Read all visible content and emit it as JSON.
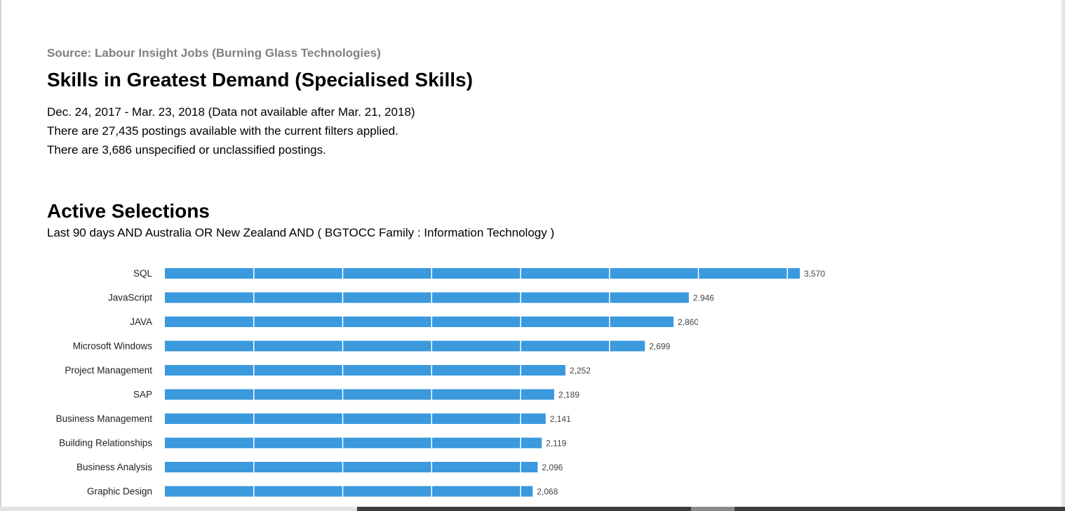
{
  "header": {
    "source": "Source: Labour Insight Jobs (Burning Glass Technologies)",
    "title": "Skills in Greatest Demand (Specialised Skills)",
    "date_range": "Dec.  24, 2017  - Mar.  23, 2018  (Data not available after  Mar.  21, 2018)",
    "postings": "There are 27,435 postings available with the current filters applied.",
    "unspecified": "There are 3,686 unspecified or unclassified postings."
  },
  "selections": {
    "heading": "Active Selections",
    "text": "Last 90 days AND Australia OR New Zealand AND ( BGTOCC Family : Information Technology )"
  },
  "chart_data": {
    "type": "bar",
    "orientation": "horizontal",
    "categories": [
      "SQL",
      "JavaScript",
      "JAVA",
      "Microsoft Windows",
      "Project Management",
      "SAP",
      "Business Management",
      "Building Relationships",
      "Business Analysis",
      "Graphic Design"
    ],
    "values": [
      3570,
      2946,
      2860,
      2699,
      2252,
      2189,
      2141,
      2119,
      2096,
      2068
    ],
    "value_labels": [
      "3,570",
      "2,946",
      "2,860",
      "2,699",
      "2,252",
      "2,189",
      "2,141",
      "2,119",
      "2,096",
      "2,068"
    ],
    "xlim": [
      0,
      3570
    ],
    "gridline_values": [
      500,
      1000,
      1500,
      2000,
      2500,
      3000,
      3500
    ],
    "grid": true,
    "bar_color": "#3b99dd",
    "title": "",
    "xlabel": "",
    "ylabel": ""
  }
}
